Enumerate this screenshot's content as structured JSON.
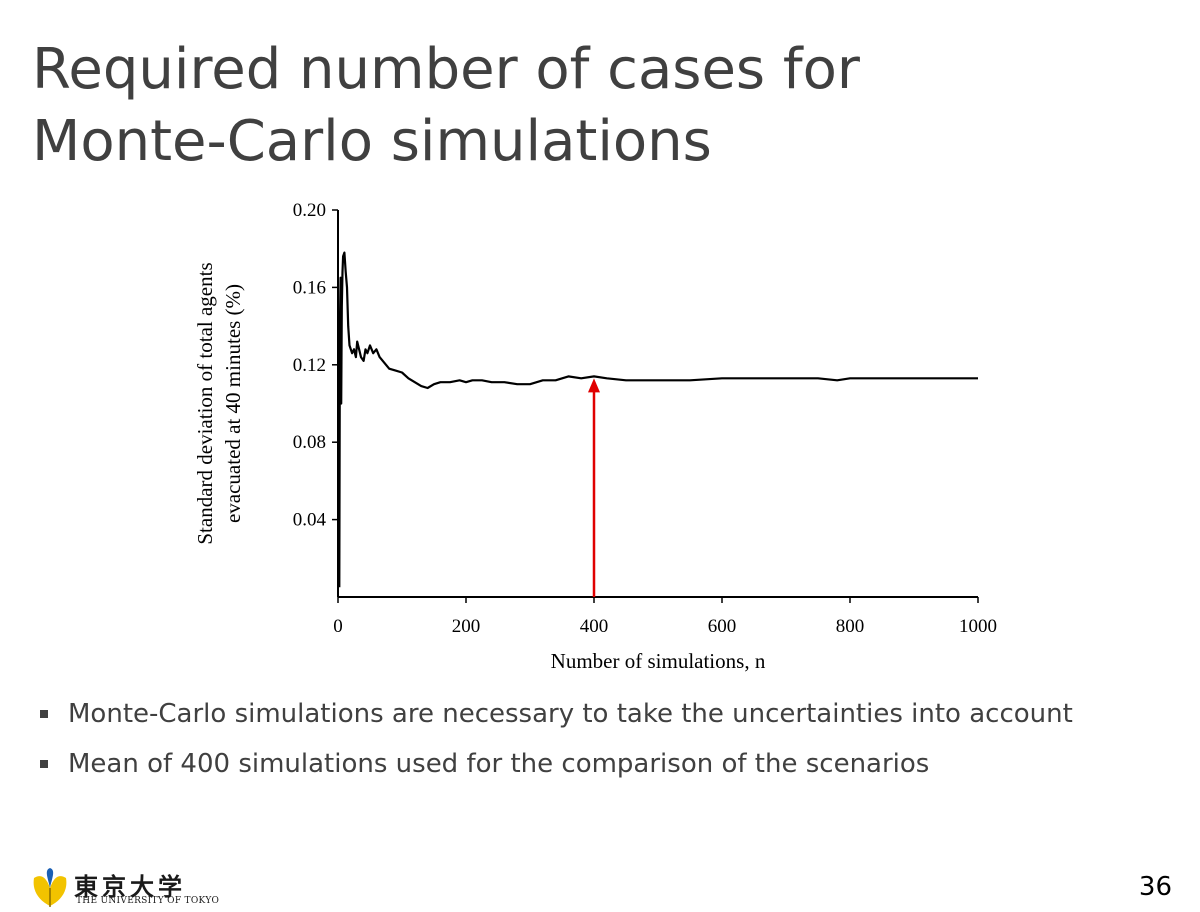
{
  "slide": {
    "title_lines": [
      "Required number of cases for",
      "Monte-Carlo simulations"
    ],
    "bullets": [
      "Monte-Carlo simulations are necessary to take the uncertainties into account",
      "Mean of 400 simulations used for the comparison of the scenarios"
    ],
    "page_number": "36",
    "logo": {
      "name_jp": "東京大学",
      "name_en": "THE UNIVERSITY OF TOKYO",
      "emblem_icon": "ginkgo-leaf-icon"
    }
  },
  "chart_data": {
    "type": "line",
    "title": "",
    "xlabel": "Number of simulations, n",
    "ylabel_lines": [
      "Standard deviation of total agents",
      "evacuated at 40 minutes (%)"
    ],
    "xlim": [
      0,
      1000
    ],
    "ylim": [
      0,
      0.2
    ],
    "x_ticks": [
      "0",
      "200",
      "400",
      "600",
      "800",
      "1000"
    ],
    "y_ticks": [
      "0.04",
      "0.08",
      "0.12",
      "0.16",
      "0.20"
    ],
    "grid": false,
    "line_color": "#000000",
    "series": [
      {
        "x": [
          2,
          3,
          4,
          5,
          6,
          7,
          8,
          10,
          12,
          14,
          16,
          18,
          20,
          22,
          25,
          28,
          30,
          33,
          36,
          40,
          43,
          46,
          50,
          55,
          60,
          65,
          70,
          75,
          80,
          90,
          100,
          110,
          120,
          130,
          140,
          150,
          160,
          175,
          190,
          200,
          210,
          225,
          240,
          260,
          280,
          300,
          320,
          340,
          360,
          380,
          400,
          420,
          450,
          480,
          500,
          550,
          600,
          650,
          700,
          750,
          780,
          800,
          850,
          900,
          950,
          1000
        ],
        "y": [
          0.005,
          0.14,
          0.165,
          0.1,
          0.15,
          0.168,
          0.176,
          0.178,
          0.168,
          0.16,
          0.14,
          0.13,
          0.128,
          0.126,
          0.128,
          0.124,
          0.132,
          0.128,
          0.124,
          0.122,
          0.128,
          0.126,
          0.13,
          0.126,
          0.128,
          0.124,
          0.122,
          0.12,
          0.118,
          0.117,
          0.116,
          0.113,
          0.111,
          0.109,
          0.108,
          0.11,
          0.111,
          0.111,
          0.112,
          0.111,
          0.112,
          0.112,
          0.111,
          0.111,
          0.11,
          0.11,
          0.112,
          0.112,
          0.114,
          0.113,
          0.114,
          0.113,
          0.112,
          0.112,
          0.112,
          0.112,
          0.113,
          0.113,
          0.113,
          0.113,
          0.112,
          0.113,
          0.113,
          0.113,
          0.113,
          0.113
        ]
      }
    ],
    "annotations": [
      {
        "type": "arrow",
        "x": 400,
        "y_from": 0,
        "y_to": 0.113,
        "color": "#e00000"
      }
    ]
  }
}
